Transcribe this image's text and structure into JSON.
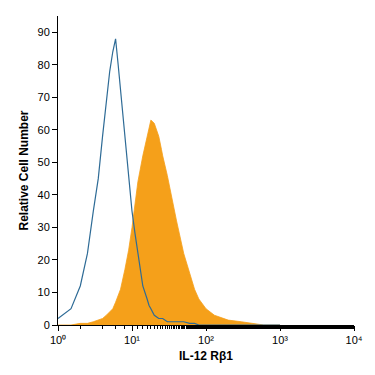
{
  "chart_data": {
    "type": "line",
    "x_label": "IL-12 Rβ1",
    "y_label": "Relative Cell Number",
    "x": [
      1,
      1.5,
      2,
      2.5,
      3,
      3.5,
      4,
      4.5,
      5,
      5.5,
      6,
      6.5,
      7,
      8,
      9,
      10,
      11,
      12,
      14,
      16,
      17,
      18,
      20,
      23,
      25,
      26,
      30,
      35,
      40,
      50,
      60,
      70,
      80,
      100,
      130,
      200,
      300,
      450,
      600,
      1000
    ],
    "series": [
      {
        "type": "area",
        "color": "#f5a01a",
        "values": [
          0,
          0,
          0.5,
          0.5,
          1,
          1.5,
          2,
          3,
          4,
          5,
          7,
          9,
          11,
          17,
          23,
          30,
          37,
          44,
          52,
          58,
          61,
          63,
          62,
          58,
          54,
          52,
          46,
          38,
          32,
          22,
          16,
          11,
          8,
          5,
          3,
          1.5,
          1,
          0.5,
          0,
          0
        ]
      },
      {
        "type": "line",
        "color": "#2e6b96",
        "values": [
          2,
          5,
          12,
          22,
          35,
          45,
          58,
          68,
          78,
          84,
          88,
          80,
          72,
          58,
          45,
          35,
          28,
          22,
          12,
          8,
          6,
          5,
          3,
          2,
          2,
          2,
          1,
          1,
          1,
          1,
          0.5,
          0.5,
          0,
          0,
          0,
          0,
          0,
          0,
          0,
          0
        ]
      }
    ],
    "log": "x",
    "xlim": [
      1,
      10000
    ],
    "xticks": [
      {
        "value": 1,
        "label": "10⁰"
      },
      {
        "value": 10,
        "label": "10¹"
      },
      {
        "value": 100,
        "label": "10²"
      },
      {
        "value": 1000,
        "label": "10³"
      },
      {
        "value": 10000,
        "label": "10⁴"
      }
    ],
    "ylim": [
      0,
      95
    ],
    "yticks": [
      0,
      10,
      20,
      30,
      40,
      50,
      60,
      70,
      80,
      90
    ],
    "grid": false
  }
}
